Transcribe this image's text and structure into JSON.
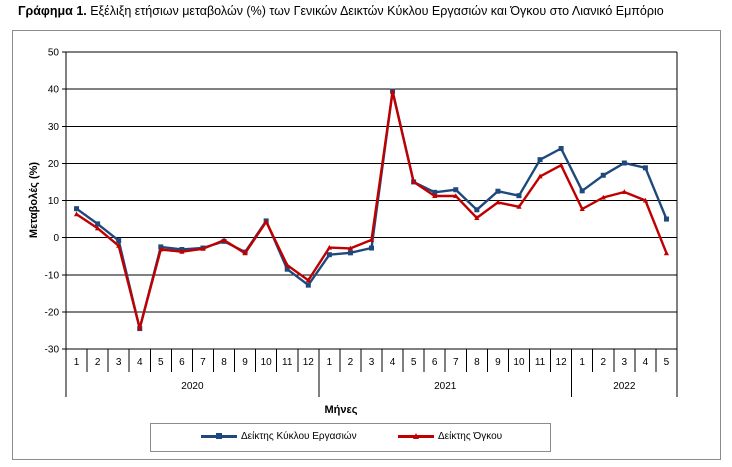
{
  "title_bold": "Γράφημα 1.",
  "title_rest": " Εξέλιξη ετήσιων μεταβολών (%) των Γενικών Δεικτών Κύκλου Εργασιών και Όγκου στο Λιανικό Εμπόριο",
  "chart_data": {
    "type": "line",
    "ylabel": "Μεταβολές  (%)",
    "xlabel": "Μήνες",
    "ylim": [
      -30,
      50
    ],
    "yticks": [
      -30,
      -20,
      -10,
      0,
      10,
      20,
      30,
      40,
      50
    ],
    "grid": "horizontal",
    "legend_position": "bottom",
    "categories": [
      "1",
      "2",
      "3",
      "4",
      "5",
      "6",
      "7",
      "8",
      "9",
      "10",
      "11",
      "12",
      "1",
      "2",
      "3",
      "4",
      "5",
      "6",
      "7",
      "8",
      "9",
      "10",
      "11",
      "12",
      "1",
      "2",
      "3",
      "4",
      "5"
    ],
    "groups": [
      {
        "label": "2020",
        "count": 12
      },
      {
        "label": "2021",
        "count": 12
      },
      {
        "label": "2022",
        "count": 5
      }
    ],
    "series": [
      {
        "name": "Δείκτης Κύκλου Εργασιών",
        "color": "#1f497d",
        "marker": "square",
        "values": [
          7.8,
          3.7,
          -0.8,
          -24.5,
          -2.5,
          -3.2,
          -2.8,
          -1.0,
          -3.9,
          4.5,
          -8.5,
          -12.8,
          -4.6,
          -4.1,
          -2.8,
          39.5,
          15.0,
          12.2,
          12.9,
          7.5,
          12.5,
          11.3,
          21.0,
          24.0,
          12.6,
          16.8,
          20.1,
          18.8,
          5.0
        ]
      },
      {
        "name": "Δείκτης Όγκου",
        "color": "#c00000",
        "marker": "triangle",
        "values": [
          6.3,
          2.5,
          -2.2,
          -24.4,
          -3.2,
          -3.8,
          -3.0,
          -0.7,
          -4.2,
          4.3,
          -7.4,
          -11.5,
          -2.7,
          -2.9,
          -0.6,
          39.3,
          15.0,
          11.2,
          11.2,
          5.3,
          9.5,
          8.3,
          16.5,
          19.5,
          7.7,
          10.8,
          12.3,
          10.0,
          -4.2
        ]
      }
    ]
  }
}
